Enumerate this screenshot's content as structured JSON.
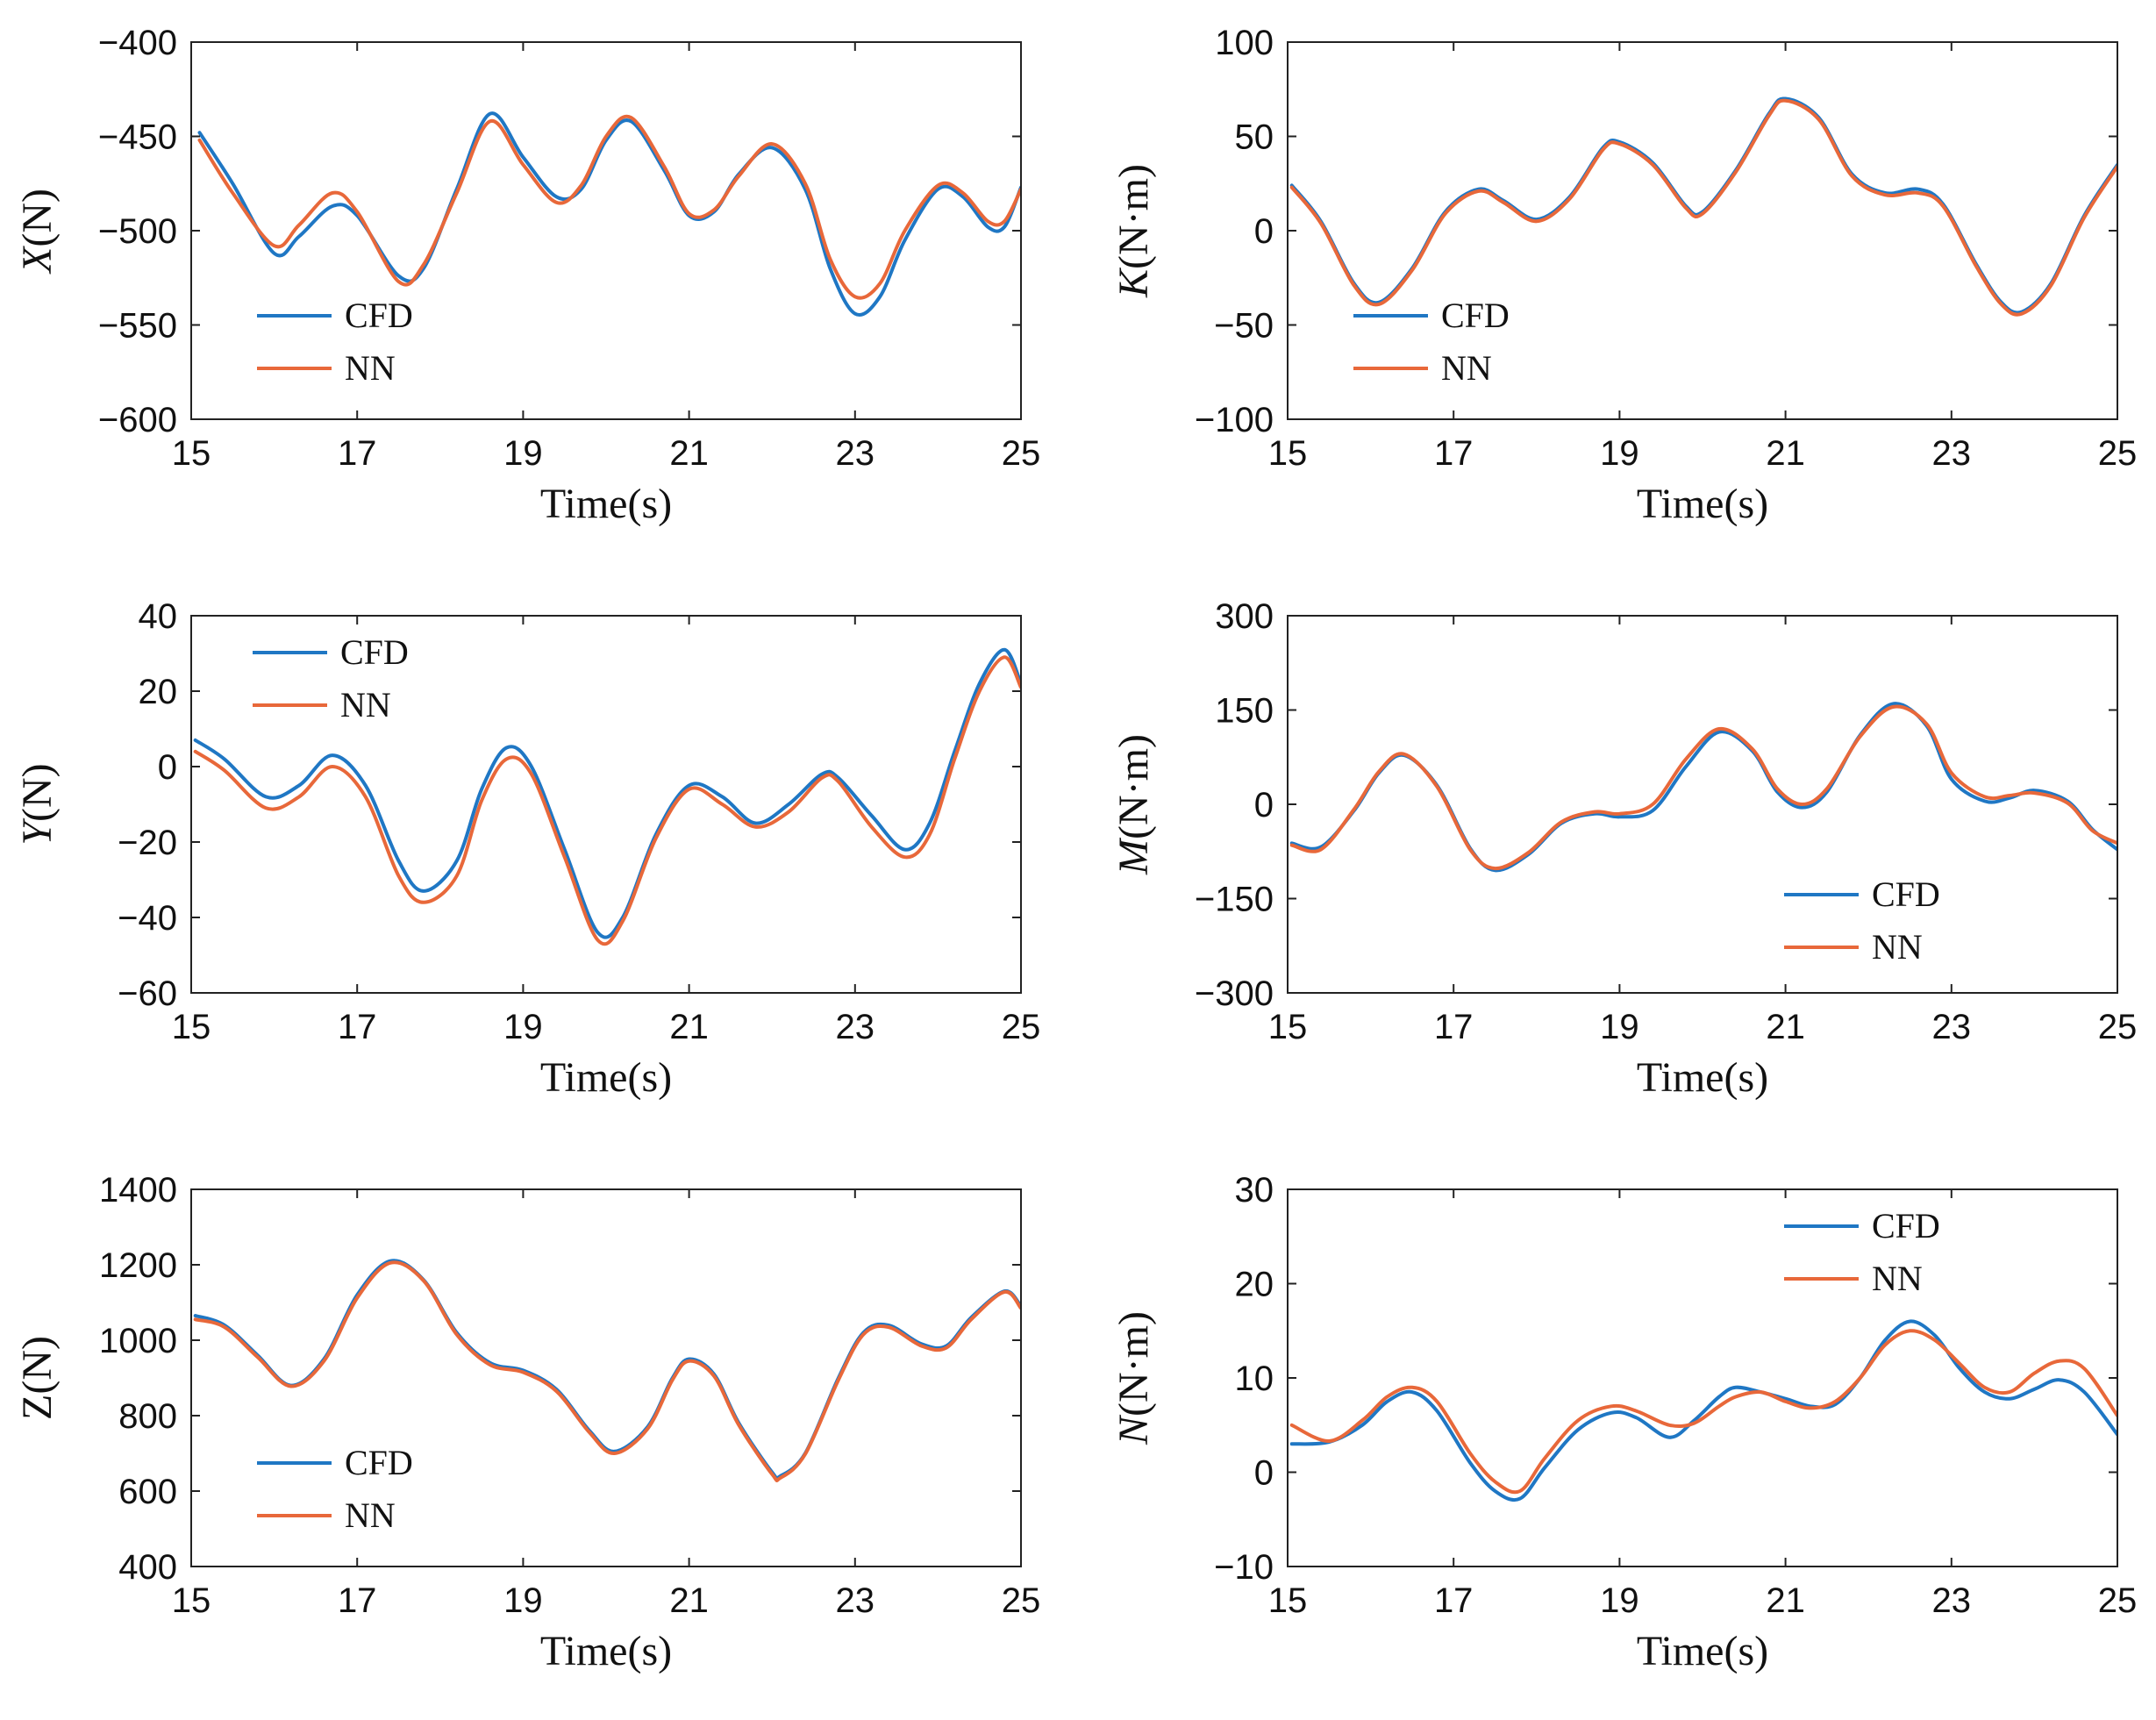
{
  "colors": {
    "cfd": "#1f77c4",
    "nn": "#e8683a"
  },
  "chart_data": [
    {
      "id": "X",
      "type": "line",
      "ylabel_italic": "X",
      "ylabel_unit": "(N)",
      "xlabel": "Time(s)",
      "xlim": [
        15,
        25
      ],
      "ylim": [
        -600,
        -400
      ],
      "xticks": [
        15,
        17,
        19,
        21,
        23,
        25
      ],
      "xtick_labels": [
        "15",
        "17",
        "19",
        "21",
        "23",
        "25"
      ],
      "yticks": [
        -600,
        -550,
        -500,
        -450,
        -400
      ],
      "ytick_labels": [
        "−600",
        "−550",
        "−500",
        "−450",
        "−400"
      ],
      "legend": "bottom-left",
      "series": [
        {
          "name": "CFD",
          "x": [
            15.1,
            15.5,
            16.0,
            16.3,
            16.7,
            17.0,
            17.5,
            17.8,
            18.2,
            18.6,
            19.0,
            19.4,
            19.7,
            20.0,
            20.3,
            20.7,
            21.0,
            21.3,
            21.6,
            22.0,
            22.4,
            22.7,
            23.0,
            23.3,
            23.6,
            24.0,
            24.3,
            24.6,
            24.8,
            25.0
          ],
          "y": [
            -448,
            -475,
            -512,
            -503,
            -487,
            -492,
            -524,
            -520,
            -478,
            -438,
            -461,
            -482,
            -478,
            -452,
            -442,
            -468,
            -492,
            -490,
            -470,
            -456,
            -478,
            -520,
            -544,
            -535,
            -505,
            -478,
            -482,
            -498,
            -498,
            -477
          ]
        },
        {
          "name": "NN",
          "x": [
            15.1,
            15.5,
            16.0,
            16.3,
            16.7,
            17.0,
            17.5,
            17.8,
            18.2,
            18.6,
            19.0,
            19.4,
            19.7,
            20.0,
            20.3,
            20.7,
            21.0,
            21.3,
            21.6,
            22.0,
            22.4,
            22.7,
            23.0,
            23.3,
            23.6,
            24.0,
            24.3,
            24.6,
            24.8,
            25.0
          ],
          "y": [
            -452,
            -480,
            -508,
            -497,
            -480,
            -490,
            -527,
            -518,
            -480,
            -442,
            -465,
            -485,
            -476,
            -450,
            -440,
            -466,
            -491,
            -489,
            -471,
            -454,
            -475,
            -515,
            -535,
            -528,
            -500,
            -476,
            -480,
            -495,
            -495,
            -478
          ]
        }
      ]
    },
    {
      "id": "K",
      "type": "line",
      "ylabel_italic": "K",
      "ylabel_unit": "(N·m)",
      "xlabel": "Time(s)",
      "xlim": [
        15,
        25
      ],
      "ylim": [
        -100,
        100
      ],
      "xticks": [
        15,
        17,
        19,
        21,
        23,
        25
      ],
      "xtick_labels": [
        "15",
        "17",
        "19",
        "21",
        "23",
        "25"
      ],
      "yticks": [
        -100,
        -50,
        0,
        50,
        100
      ],
      "ytick_labels": [
        "−100",
        "−50",
        "0",
        "50",
        "100"
      ],
      "legend": "bottom-left",
      "series": [
        {
          "name": "CFD",
          "x": [
            15.05,
            15.4,
            15.8,
            16.1,
            16.5,
            16.9,
            17.3,
            17.6,
            18.0,
            18.4,
            18.8,
            19.0,
            19.4,
            19.8,
            20.0,
            20.4,
            20.8,
            21.0,
            21.4,
            21.8,
            22.2,
            22.6,
            22.9,
            23.3,
            23.6,
            23.85,
            24.2,
            24.6,
            25.0
          ],
          "y": [
            24,
            5,
            -28,
            -38,
            -20,
            10,
            22,
            16,
            6,
            18,
            44,
            47,
            36,
            13,
            10,
            32,
            62,
            70,
            60,
            30,
            20,
            22,
            14,
            -18,
            -38,
            -43,
            -28,
            8,
            35
          ]
        },
        {
          "name": "NN",
          "x": [
            15.05,
            15.4,
            15.8,
            16.1,
            16.5,
            16.9,
            17.3,
            17.6,
            18.0,
            18.4,
            18.8,
            19.0,
            19.4,
            19.8,
            20.0,
            20.4,
            20.8,
            21.0,
            21.4,
            21.8,
            22.2,
            22.6,
            22.9,
            23.3,
            23.6,
            23.85,
            24.2,
            24.6,
            25.0
          ],
          "y": [
            23,
            4,
            -29,
            -39,
            -21,
            9,
            21,
            15,
            5,
            17,
            43,
            46,
            35,
            12,
            9,
            31,
            61,
            69,
            59,
            29,
            19,
            20,
            13,
            -19,
            -39,
            -44,
            -29,
            7,
            34
          ]
        }
      ]
    },
    {
      "id": "Y",
      "type": "line",
      "ylabel_italic": "Y",
      "ylabel_unit": "(N)",
      "xlabel": "Time(s)",
      "xlim": [
        15,
        25
      ],
      "ylim": [
        -60,
        40
      ],
      "xticks": [
        15,
        17,
        19,
        21,
        23,
        25
      ],
      "xtick_labels": [
        "15",
        "17",
        "19",
        "21",
        "23",
        "25"
      ],
      "yticks": [
        -60,
        -40,
        -20,
        0,
        20,
        40
      ],
      "ytick_labels": [
        "−60",
        "−40",
        "−20",
        "0",
        "20",
        "40"
      ],
      "legend": "top-left",
      "series": [
        {
          "name": "CFD",
          "x": [
            15.05,
            15.4,
            15.9,
            16.3,
            16.7,
            17.1,
            17.5,
            17.8,
            18.2,
            18.5,
            18.8,
            19.1,
            19.5,
            19.9,
            20.2,
            20.6,
            21.0,
            21.4,
            21.8,
            22.2,
            22.6,
            22.8,
            23.2,
            23.6,
            23.9,
            24.2,
            24.5,
            24.8,
            25.0
          ],
          "y": [
            7,
            2,
            -8,
            -5,
            3,
            -5,
            -25,
            -33,
            -25,
            -6,
            5,
            0,
            -22,
            -44,
            -40,
            -18,
            -5,
            -8,
            -15,
            -10,
            -2,
            -3,
            -13,
            -22,
            -15,
            4,
            22,
            31,
            22
          ]
        },
        {
          "name": "NN",
          "x": [
            15.05,
            15.4,
            15.9,
            16.3,
            16.7,
            17.1,
            17.5,
            17.8,
            18.2,
            18.5,
            18.8,
            19.1,
            19.5,
            19.9,
            20.2,
            20.6,
            21.0,
            21.4,
            21.8,
            22.2,
            22.6,
            22.8,
            23.2,
            23.6,
            23.9,
            24.2,
            24.5,
            24.8,
            25.0
          ],
          "y": [
            4,
            -1,
            -11,
            -8,
            0,
            -8,
            -29,
            -36,
            -29,
            -9,
            2,
            -2,
            -24,
            -46,
            -41,
            -19,
            -6,
            -10,
            -16,
            -12,
            -3,
            -4,
            -16,
            -24,
            -18,
            2,
            20,
            29,
            21
          ]
        }
      ]
    },
    {
      "id": "M",
      "type": "line",
      "ylabel_italic": "M",
      "ylabel_unit": "(N·m)",
      "xlabel": "Time(s)",
      "xlim": [
        15,
        25
      ],
      "ylim": [
        -300,
        300
      ],
      "xticks": [
        15,
        17,
        19,
        21,
        23,
        25
      ],
      "xtick_labels": [
        "15",
        "17",
        "19",
        "21",
        "23",
        "25"
      ],
      "yticks": [
        -300,
        -150,
        0,
        150,
        300
      ],
      "ytick_labels": [
        "−300",
        "−150",
        "0",
        "150",
        "300"
      ],
      "legend": "bottom-right",
      "series": [
        {
          "name": "CFD",
          "x": [
            15.05,
            15.4,
            15.8,
            16.1,
            16.4,
            16.8,
            17.2,
            17.5,
            17.9,
            18.3,
            18.7,
            19.0,
            19.4,
            19.8,
            20.2,
            20.6,
            20.9,
            21.2,
            21.5,
            21.9,
            22.3,
            22.7,
            23.0,
            23.4,
            23.7,
            24.0,
            24.4,
            24.7,
            25.0
          ],
          "y": [
            -62,
            -68,
            -10,
            50,
            78,
            30,
            -70,
            -105,
            -80,
            -30,
            -15,
            -20,
            -10,
            60,
            115,
            85,
            20,
            -5,
            20,
            110,
            160,
            125,
            40,
            5,
            10,
            22,
            5,
            -40,
            -72
          ]
        },
        {
          "name": "NN",
          "x": [
            15.05,
            15.4,
            15.8,
            16.1,
            16.4,
            16.8,
            17.2,
            17.5,
            17.9,
            18.3,
            18.7,
            19.0,
            19.4,
            19.8,
            20.2,
            20.6,
            20.9,
            21.2,
            21.5,
            21.9,
            22.3,
            22.7,
            23.0,
            23.4,
            23.7,
            24.0,
            24.4,
            24.7,
            25.0
          ],
          "y": [
            -65,
            -72,
            -8,
            52,
            80,
            28,
            -72,
            -102,
            -77,
            -28,
            -12,
            -15,
            0,
            72,
            120,
            88,
            25,
            0,
            25,
            108,
            155,
            128,
            50,
            12,
            14,
            18,
            2,
            -42,
            -62
          ]
        }
      ]
    },
    {
      "id": "Z",
      "type": "line",
      "ylabel_italic": "",
      "ylabel_unit": "Z(N)",
      "xlabel": "Time(s)",
      "xlim": [
        15,
        25
      ],
      "ylim": [
        400,
        1400
      ],
      "xticks": [
        15,
        17,
        19,
        21,
        23,
        25
      ],
      "xtick_labels": [
        "15",
        "17",
        "19",
        "21",
        "23",
        "25"
      ],
      "yticks": [
        400,
        600,
        800,
        1000,
        1200,
        1400
      ],
      "ytick_labels": [
        "400",
        "600",
        "800",
        "1000",
        "1200",
        "1400"
      ],
      "legend": "bottom-left",
      "series": [
        {
          "name": "CFD",
          "x": [
            15.05,
            15.4,
            15.8,
            16.2,
            16.6,
            17.0,
            17.4,
            17.8,
            18.2,
            18.6,
            19.0,
            19.4,
            19.8,
            20.1,
            20.5,
            20.8,
            21.0,
            21.3,
            21.6,
            22.0,
            22.1,
            22.4,
            22.8,
            23.1,
            23.4,
            23.8,
            24.1,
            24.4,
            24.8,
            25.0
          ],
          "y": [
            1065,
            1040,
            960,
            880,
            950,
            1120,
            1210,
            1160,
            1020,
            940,
            920,
            870,
            760,
            705,
            770,
            900,
            950,
            910,
            780,
            650,
            640,
            700,
            900,
            1020,
            1040,
            990,
            985,
            1060,
            1130,
            1090
          ]
        },
        {
          "name": "NN",
          "x": [
            15.05,
            15.4,
            15.8,
            16.2,
            16.6,
            17.0,
            17.4,
            17.8,
            18.2,
            18.6,
            19.0,
            19.4,
            19.8,
            20.1,
            20.5,
            20.8,
            21.0,
            21.3,
            21.6,
            22.0,
            22.1,
            22.4,
            22.8,
            23.1,
            23.4,
            23.8,
            24.1,
            24.4,
            24.8,
            25.0
          ],
          "y": [
            1055,
            1035,
            955,
            878,
            945,
            1112,
            1205,
            1158,
            1015,
            935,
            915,
            865,
            755,
            700,
            765,
            895,
            945,
            905,
            775,
            645,
            635,
            698,
            895,
            1015,
            1035,
            985,
            980,
            1055,
            1128,
            1085
          ]
        }
      ]
    },
    {
      "id": "N",
      "type": "line",
      "ylabel_italic": "N",
      "ylabel_unit": "(N·m)",
      "xlabel": "Time(s)",
      "xlim": [
        15,
        25
      ],
      "ylim": [
        -10,
        30
      ],
      "xticks": [
        15,
        17,
        19,
        21,
        23,
        25
      ],
      "xtick_labels": [
        "15",
        "17",
        "19",
        "21",
        "23",
        "25"
      ],
      "yticks": [
        -10,
        0,
        10,
        20,
        30
      ],
      "ytick_labels": [
        "−10",
        "0",
        "10",
        "20",
        "30"
      ],
      "legend": "top-right",
      "series": [
        {
          "name": "CFD",
          "x": [
            15.05,
            15.5,
            15.9,
            16.2,
            16.5,
            16.8,
            17.2,
            17.5,
            17.8,
            18.1,
            18.5,
            18.9,
            19.2,
            19.6,
            19.9,
            20.2,
            20.4,
            20.7,
            21.0,
            21.3,
            21.6,
            21.9,
            22.2,
            22.5,
            22.8,
            23.1,
            23.4,
            23.7,
            24.0,
            24.3,
            24.6,
            25.0
          ],
          "y": [
            3,
            3.2,
            5,
            7.5,
            8.5,
            6.5,
            1,
            -2,
            -2.8,
            0.5,
            4.5,
            6.3,
            5.8,
            3.7,
            5.5,
            8,
            9,
            8.5,
            7.8,
            7,
            7.2,
            10,
            14,
            16,
            14.5,
            11,
            8.5,
            7.8,
            8.8,
            9.8,
            8.5,
            4
          ]
        },
        {
          "name": "NN",
          "x": [
            15.05,
            15.5,
            15.9,
            16.2,
            16.5,
            16.8,
            17.2,
            17.5,
            17.8,
            18.1,
            18.5,
            18.9,
            19.2,
            19.6,
            19.9,
            20.2,
            20.4,
            20.7,
            21.0,
            21.3,
            21.6,
            21.9,
            22.2,
            22.5,
            22.8,
            23.1,
            23.4,
            23.7,
            24.0,
            24.3,
            24.6,
            25.0
          ],
          "y": [
            5,
            3.3,
            5.5,
            8,
            9,
            7.5,
            2,
            -1,
            -2,
            1.5,
            5.5,
            7,
            6.5,
            5,
            5.2,
            7,
            8,
            8.5,
            7.5,
            6.8,
            7.5,
            10,
            13.5,
            15,
            14,
            11.5,
            9,
            8.5,
            10.5,
            11.8,
            11,
            6
          ]
        }
      ]
    }
  ]
}
